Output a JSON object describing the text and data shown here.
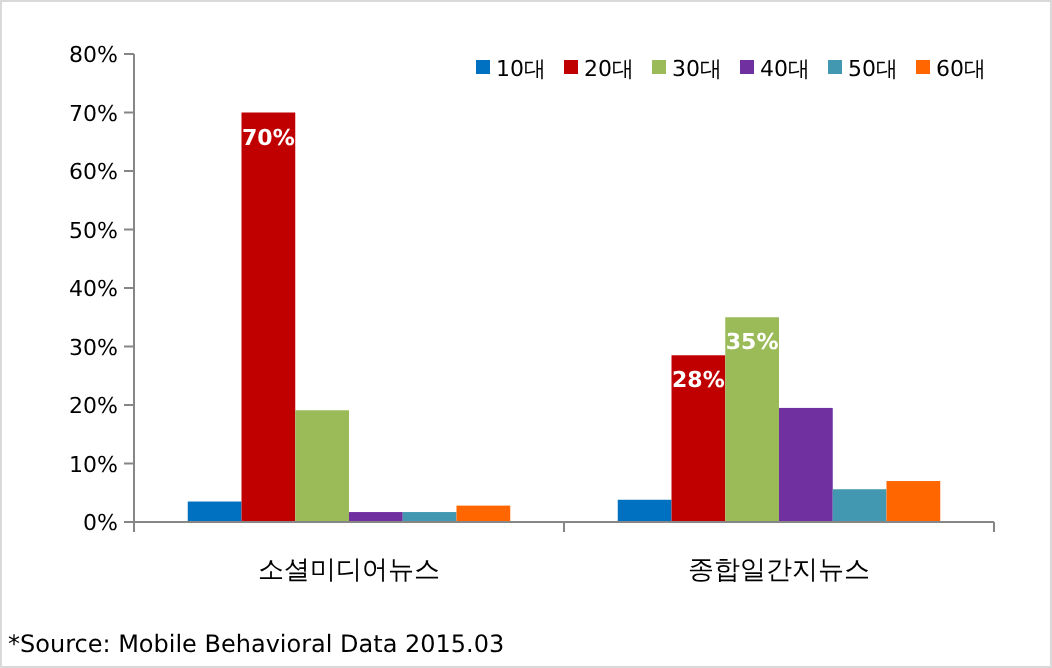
{
  "chart_data": {
    "type": "bar",
    "categories": [
      "소셜미디어뉴스",
      "종합일간지뉴스"
    ],
    "series": [
      {
        "name": "10대",
        "color": "#0070c0",
        "values": [
          3.5,
          3.8
        ]
      },
      {
        "name": "20대",
        "color": "#c00000",
        "values": [
          70,
          28.5
        ],
        "value_labels": [
          "70%",
          "28%"
        ]
      },
      {
        "name": "30대",
        "color": "#9bbb59",
        "values": [
          19.1,
          35
        ],
        "value_labels": [
          null,
          "35%"
        ]
      },
      {
        "name": "40대",
        "color": "#7030a0",
        "values": [
          1.7,
          19.5
        ]
      },
      {
        "name": "50대",
        "color": "#4298b0",
        "values": [
          1.7,
          5.6
        ]
      },
      {
        "name": "60대",
        "color": "#ff6600",
        "values": [
          2.8,
          7.0
        ]
      }
    ],
    "ylim": [
      0,
      80
    ],
    "yticks": [
      {
        "value": 0,
        "label": "0%"
      },
      {
        "value": 10,
        "label": "10%"
      },
      {
        "value": 20,
        "label": "20%"
      },
      {
        "value": 30,
        "label": "30%"
      },
      {
        "value": 40,
        "label": "40%"
      },
      {
        "value": 50,
        "label": "50%"
      },
      {
        "value": 60,
        "label": "60%"
      },
      {
        "value": 70,
        "label": "70%"
      },
      {
        "value": 80,
        "label": "80%"
      }
    ],
    "grid": false,
    "legend": "top right",
    "annotations": [
      "*Source: Mobile Behavioral Data 2015.03"
    ]
  }
}
